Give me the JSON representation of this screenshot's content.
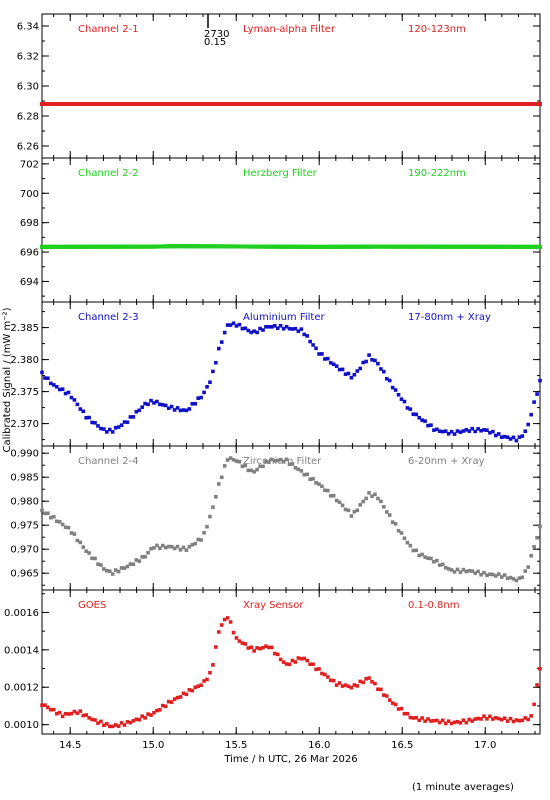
{
  "xlabel": "Time / h UTC, 26 Mar 2026",
  "ylabel": "Calibrated Signal / (mW m⁻²)",
  "footnote": "(1 minute averages)",
  "top_marker": {
    "label_a": "2730",
    "label_b": "0.15",
    "x": 15.33
  },
  "chart_data": [
    {
      "type": "scatter",
      "id": "ch1",
      "labels": [
        "Channel 2-1",
        "Lyman-alpha Filter",
        "120-123nm"
      ],
      "color": "#e02020",
      "xlim": [
        14.33,
        17.33
      ],
      "ylim": [
        6.252,
        6.348
      ],
      "yticks": [
        6.26,
        6.28,
        6.3,
        6.32,
        6.34
      ],
      "ytick_labels": [
        "6.26",
        "6.28",
        "6.30",
        "6.32",
        "6.34"
      ],
      "kx": [
        14.33,
        17.33
      ],
      "ky": [
        6.288,
        6.288
      ],
      "dense": true
    },
    {
      "type": "scatter",
      "id": "ch2",
      "labels": [
        "Channel 2-2",
        "Herzberg Filter",
        "190-222nm"
      ],
      "color": "#20d020",
      "xlim": [
        14.33,
        17.33
      ],
      "ylim": [
        692.6,
        702.4
      ],
      "yticks": [
        694,
        696,
        698,
        700,
        702
      ],
      "ytick_labels": [
        "694",
        "696",
        "698",
        "700",
        "702"
      ],
      "kx": [
        14.33,
        15.0,
        15.15,
        16.0,
        16.35,
        17.33
      ],
      "ky": [
        696.35,
        696.37,
        696.4,
        696.35,
        696.37,
        696.35
      ],
      "dense": true
    },
    {
      "type": "scatter",
      "id": "ch3",
      "labels": [
        "Channel 2-3",
        "Aluminium Filter",
        "17-80nm + Xray"
      ],
      "color": "#1010c8",
      "xlim": [
        14.33,
        17.33
      ],
      "ylim": [
        2.3665,
        2.389
      ],
      "yticks": [
        2.37,
        2.375,
        2.38,
        2.385
      ],
      "ytick_labels": [
        "2.370",
        "2.375",
        "2.380",
        "2.385"
      ],
      "kx": [
        14.33,
        14.4,
        14.5,
        14.6,
        14.7,
        14.75,
        14.85,
        14.95,
        15.0,
        15.1,
        15.2,
        15.3,
        15.35,
        15.4,
        15.45,
        15.5,
        15.6,
        15.7,
        15.8,
        15.9,
        16.0,
        16.1,
        16.2,
        16.3,
        16.35,
        16.45,
        16.55,
        16.6,
        16.7,
        16.8,
        16.9,
        17.0,
        17.1,
        17.2,
        17.25,
        17.33
      ],
      "ky": [
        2.3778,
        2.376,
        2.3745,
        2.371,
        2.369,
        2.3688,
        2.3705,
        2.373,
        2.3735,
        2.3725,
        2.372,
        2.3745,
        2.377,
        2.382,
        2.3855,
        2.3855,
        2.3842,
        2.3852,
        2.385,
        2.3845,
        2.381,
        2.379,
        2.3772,
        2.3805,
        2.3795,
        2.3755,
        2.372,
        2.371,
        2.369,
        2.3685,
        2.369,
        2.369,
        2.368,
        2.3675,
        2.369,
        2.3765
      ],
      "dense": false
    },
    {
      "type": "scatter",
      "id": "ch4",
      "labels": [
        "Channel 2-4",
        "Zirconium Filter",
        "6-20nm + Xray"
      ],
      "color": "#808080",
      "xlim": [
        14.33,
        17.33
      ],
      "ylim": [
        0.9615,
        0.9915
      ],
      "yticks": [
        0.965,
        0.97,
        0.975,
        0.98,
        0.985,
        0.99
      ],
      "ytick_labels": [
        "0.965",
        "0.970",
        "0.975",
        "0.980",
        "0.985",
        "0.990"
      ],
      "kx": [
        14.33,
        14.4,
        14.5,
        14.6,
        14.7,
        14.75,
        14.85,
        14.95,
        15.0,
        15.1,
        15.2,
        15.3,
        15.35,
        15.4,
        15.45,
        15.5,
        15.6,
        15.7,
        15.8,
        15.9,
        16.0,
        16.1,
        16.2,
        16.3,
        16.35,
        16.45,
        16.55,
        16.6,
        16.7,
        16.8,
        16.9,
        17.0,
        17.1,
        17.2,
        17.25,
        17.33
      ],
      "ky": [
        0.978,
        0.9765,
        0.974,
        0.9695,
        0.966,
        0.965,
        0.9665,
        0.9685,
        0.9705,
        0.9705,
        0.97,
        0.9725,
        0.9775,
        0.984,
        0.989,
        0.9885,
        0.986,
        0.9885,
        0.9885,
        0.986,
        0.9835,
        0.9805,
        0.977,
        0.9815,
        0.981,
        0.9755,
        0.9705,
        0.969,
        0.9675,
        0.9655,
        0.9655,
        0.9648,
        0.9645,
        0.9635,
        0.9655,
        0.9745
      ],
      "dense": false
    },
    {
      "type": "scatter",
      "id": "goes",
      "labels": [
        "GOES",
        "Xray Sensor",
        "0.1-0.8nm"
      ],
      "color": "#e02020",
      "xlim": [
        14.33,
        17.33
      ],
      "ylim": [
        0.00095,
        0.00172
      ],
      "yticks": [
        0.001,
        0.0012,
        0.0014,
        0.0016
      ],
      "ytick_labels": [
        "0.0010",
        "0.0012",
        "0.0014",
        "0.0016"
      ],
      "kx": [
        14.33,
        14.45,
        14.55,
        14.65,
        14.75,
        14.85,
        15.0,
        15.1,
        15.2,
        15.3,
        15.35,
        15.4,
        15.45,
        15.5,
        15.6,
        15.7,
        15.8,
        15.9,
        16.0,
        16.1,
        16.2,
        16.3,
        16.35,
        16.45,
        16.55,
        16.6,
        16.7,
        16.8,
        16.9,
        17.0,
        17.1,
        17.2,
        17.28,
        17.33
      ],
      "ky": [
        0.00111,
        0.00105,
        0.00107,
        0.00102,
        0.00099,
        0.00101,
        0.00106,
        0.00112,
        0.00117,
        0.00122,
        0.00128,
        0.00152,
        0.00158,
        0.00146,
        0.0014,
        0.00142,
        0.00132,
        0.00136,
        0.00129,
        0.00122,
        0.0012,
        0.00125,
        0.0012,
        0.00111,
        0.00104,
        0.00103,
        0.00102,
        0.00101,
        0.00102,
        0.00104,
        0.00103,
        0.00102,
        0.00104,
        0.0013
      ],
      "dense": false
    }
  ],
  "xaxis": {
    "ticks": [
      14.5,
      15.0,
      15.5,
      16.0,
      16.5,
      17.0
    ],
    "tick_labels": [
      "14.5",
      "15.0",
      "15.5",
      "16.0",
      "16.5",
      "17.0"
    ]
  }
}
